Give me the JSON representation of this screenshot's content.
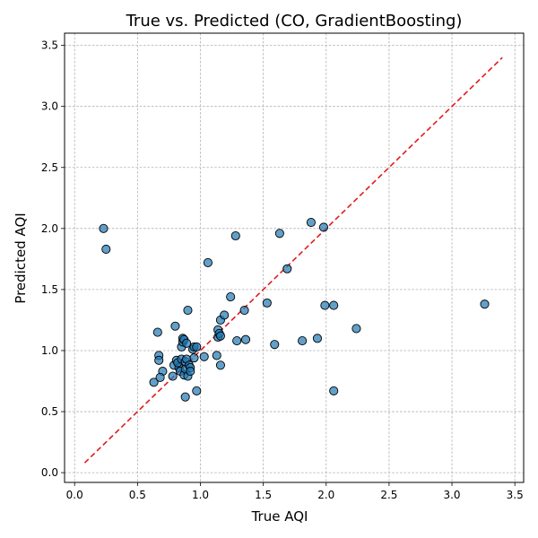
{
  "chart_data": {
    "type": "scatter",
    "title": "True vs. Predicted (CO, GradientBoosting)",
    "xlabel": "True AQI",
    "ylabel": "Predicted AQI",
    "xlim": [
      -0.08,
      3.57
    ],
    "ylim": [
      -0.08,
      3.6
    ],
    "xticks": [
      0.0,
      0.5,
      1.0,
      1.5,
      2.0,
      2.5,
      3.0,
      3.5
    ],
    "yticks": [
      0.0,
      0.5,
      1.0,
      1.5,
      2.0,
      2.5,
      3.0,
      3.5
    ],
    "grid": true,
    "point_color": "#1f77b4",
    "point_edge_color": "#000000",
    "reference_line": {
      "from": [
        0.08,
        0.08
      ],
      "to": [
        3.4,
        3.4
      ],
      "color": "#e41a1c",
      "style": "dashed"
    },
    "points": [
      [
        0.23,
        2.0
      ],
      [
        0.25,
        1.83
      ],
      [
        0.63,
        0.74
      ],
      [
        0.66,
        1.15
      ],
      [
        0.67,
        0.96
      ],
      [
        0.67,
        0.92
      ],
      [
        0.7,
        0.83
      ],
      [
        0.68,
        0.78
      ],
      [
        0.78,
        0.79
      ],
      [
        0.79,
        0.88
      ],
      [
        0.8,
        1.2
      ],
      [
        0.81,
        0.92
      ],
      [
        0.83,
        0.86
      ],
      [
        0.82,
        0.9
      ],
      [
        0.84,
        0.83
      ],
      [
        0.85,
        0.93
      ],
      [
        0.85,
        1.03
      ],
      [
        0.86,
        1.07
      ],
      [
        0.86,
        1.1
      ],
      [
        0.87,
        1.09
      ],
      [
        0.87,
        0.8
      ],
      [
        0.88,
        0.85
      ],
      [
        0.88,
        0.91
      ],
      [
        0.88,
        0.62
      ],
      [
        0.89,
        0.93
      ],
      [
        0.89,
        1.06
      ],
      [
        0.9,
        0.79
      ],
      [
        0.9,
        1.33
      ],
      [
        0.91,
        0.88
      ],
      [
        0.92,
        0.86
      ],
      [
        0.92,
        0.83
      ],
      [
        0.94,
        1.01
      ],
      [
        0.95,
        0.94
      ],
      [
        0.95,
        1.03
      ],
      [
        0.97,
        1.03
      ],
      [
        0.97,
        0.67
      ],
      [
        1.03,
        0.95
      ],
      [
        1.06,
        1.72
      ],
      [
        1.13,
        0.96
      ],
      [
        1.14,
        1.17
      ],
      [
        1.14,
        1.11
      ],
      [
        1.15,
        1.14
      ],
      [
        1.16,
        1.25
      ],
      [
        1.16,
        1.12
      ],
      [
        1.16,
        0.88
      ],
      [
        1.19,
        1.29
      ],
      [
        1.24,
        1.44
      ],
      [
        1.28,
        1.94
      ],
      [
        1.29,
        1.08
      ],
      [
        1.35,
        1.33
      ],
      [
        1.36,
        1.09
      ],
      [
        1.53,
        1.39
      ],
      [
        1.59,
        1.05
      ],
      [
        1.63,
        1.96
      ],
      [
        1.69,
        1.67
      ],
      [
        1.81,
        1.08
      ],
      [
        1.88,
        2.05
      ],
      [
        1.93,
        1.1
      ],
      [
        1.98,
        2.01
      ],
      [
        1.99,
        1.37
      ],
      [
        2.06,
        1.37
      ],
      [
        2.06,
        0.67
      ],
      [
        2.24,
        1.18
      ],
      [
        3.26,
        1.38
      ]
    ]
  }
}
